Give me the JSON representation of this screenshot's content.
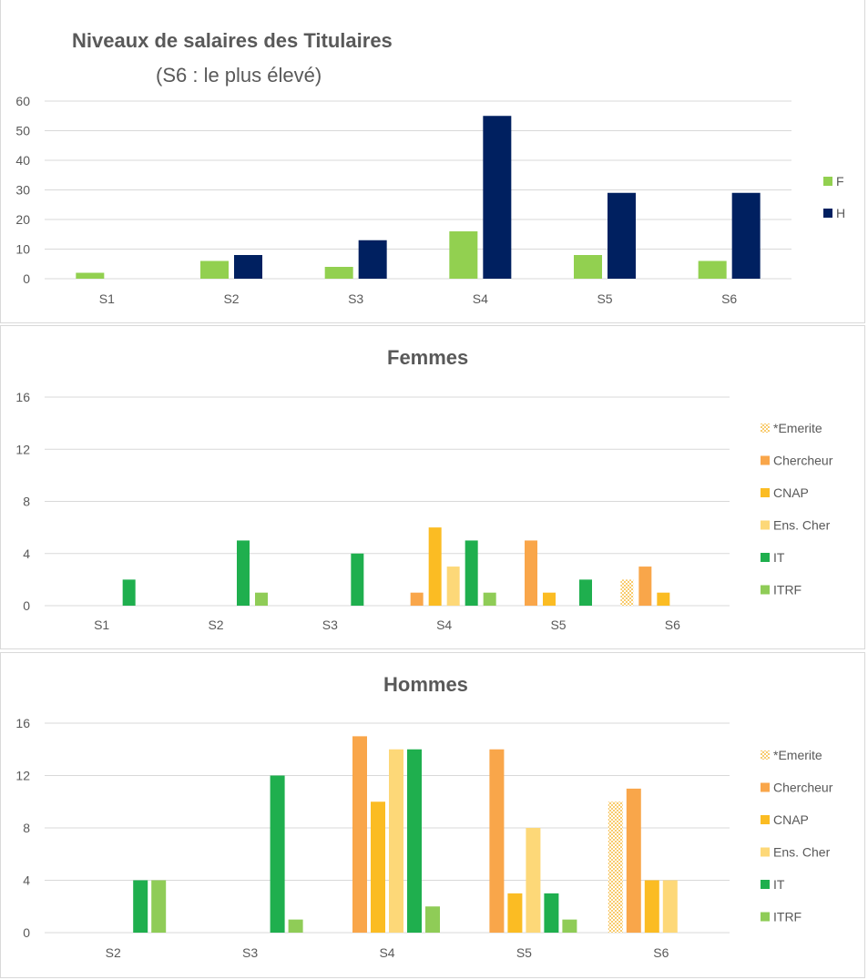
{
  "colors": {
    "F": "#92d050",
    "H": "#002060",
    "Emerite": "#f8cb6d",
    "Chercheur": "#f9a64a",
    "CNAP": "#fbbc23",
    "EnsCher": "#fdd878",
    "IT": "#1faf4e",
    "ITRF": "#8fcc57"
  },
  "chart_data": [
    {
      "type": "bar",
      "title": "Niveaux de salaires des Titulaires",
      "subtitle": "(S6 : le plus élevé)",
      "categories": [
        "S1",
        "S2",
        "S3",
        "S4",
        "S5",
        "S6"
      ],
      "yticks": [
        "0",
        "10",
        "20",
        "30",
        "40",
        "50",
        "60"
      ],
      "ylim": [
        0,
        60
      ],
      "grid": true,
      "legend_position": "right",
      "series": [
        {
          "name": "F",
          "color_key": "F",
          "values": [
            2,
            6,
            4,
            16,
            8,
            6
          ]
        },
        {
          "name": "H",
          "color_key": "H",
          "values": [
            0,
            8,
            13,
            55,
            29,
            29
          ]
        }
      ]
    },
    {
      "type": "bar",
      "title": "Femmes",
      "categories": [
        "S1",
        "S2",
        "S3",
        "S4",
        "S5",
        "S6"
      ],
      "yticks": [
        "0",
        "4",
        "8",
        "12",
        "16"
      ],
      "ylim": [
        0,
        16
      ],
      "grid": true,
      "legend_position": "right",
      "series": [
        {
          "name": "*Emerite",
          "color_key": "Emerite",
          "pattern": true,
          "values": [
            0,
            0,
            0,
            0,
            0,
            2
          ]
        },
        {
          "name": "Chercheur",
          "color_key": "Chercheur",
          "values": [
            0,
            0,
            0,
            1,
            5,
            3
          ]
        },
        {
          "name": "CNAP",
          "color_key": "CNAP",
          "values": [
            0,
            0,
            0,
            6,
            1,
            1
          ]
        },
        {
          "name": "Ens. Cher",
          "color_key": "EnsCher",
          "values": [
            0,
            0,
            0,
            3,
            0,
            0
          ]
        },
        {
          "name": "IT",
          "color_key": "IT",
          "values": [
            2,
            5,
            4,
            5,
            2,
            0
          ]
        },
        {
          "name": "ITRF",
          "color_key": "ITRF",
          "values": [
            0,
            1,
            0,
            1,
            0,
            0
          ]
        }
      ]
    },
    {
      "type": "bar",
      "title": "Hommes",
      "categories": [
        "S2",
        "S3",
        "S4",
        "S5",
        "S6"
      ],
      "yticks": [
        "0",
        "4",
        "8",
        "12",
        "16"
      ],
      "ylim": [
        0,
        16
      ],
      "grid": true,
      "legend_position": "right",
      "series": [
        {
          "name": "*Emerite",
          "color_key": "Emerite",
          "pattern": true,
          "values": [
            0,
            0,
            0,
            0,
            10
          ]
        },
        {
          "name": "Chercheur",
          "color_key": "Chercheur",
          "values": [
            0,
            0,
            15,
            14,
            11
          ]
        },
        {
          "name": "CNAP",
          "color_key": "CNAP",
          "values": [
            0,
            0,
            10,
            3,
            4
          ]
        },
        {
          "name": "Ens. Cher",
          "color_key": "EnsCher",
          "values": [
            0,
            0,
            14,
            8,
            4
          ]
        },
        {
          "name": "IT",
          "color_key": "IT",
          "values": [
            4,
            12,
            14,
            3,
            0
          ]
        },
        {
          "name": "ITRF",
          "color_key": "ITRF",
          "values": [
            4,
            1,
            2,
            1,
            0
          ]
        }
      ]
    }
  ]
}
